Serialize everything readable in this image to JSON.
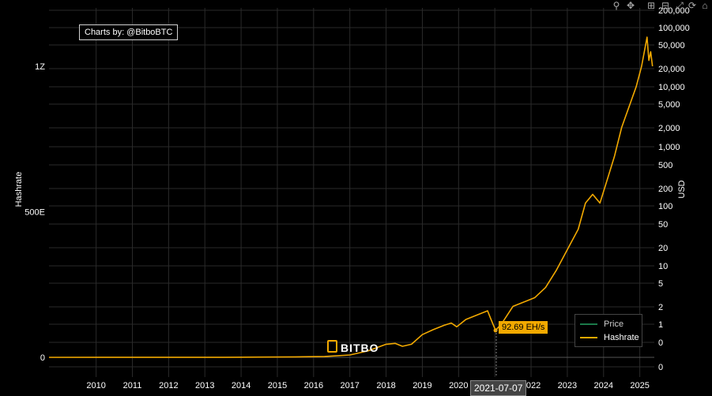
{
  "credit": "Charts by: @BitboBTC",
  "watermark": "BITBO",
  "hover": {
    "value_label": "92.69 EH/s",
    "date_label": "2021-07-07"
  },
  "toolbar": {
    "icons": [
      "zoom-icon",
      "pan-icon",
      "zoom-in-icon",
      "zoom-out-icon",
      "autoscale-icon",
      "reset-icon",
      "home-icon"
    ]
  },
  "chart_data": {
    "type": "line",
    "xlabel": "",
    "ylabel": "Hashrate",
    "y2label": "USD",
    "x_ticks": [
      "2010",
      "2011",
      "2012",
      "2013",
      "2014",
      "2015",
      "2016",
      "2017",
      "2018",
      "2019",
      "2020",
      "2021",
      "2022",
      "2023",
      "2024",
      "2025"
    ],
    "y_ticks": [
      {
        "label": "1Z",
        "value": 1000
      },
      {
        "label": "500E",
        "value": 500
      },
      {
        "label": "0",
        "value": 0
      }
    ],
    "y2_ticks": [
      "200,000",
      "100,000",
      "50,000",
      "20,000",
      "10,000",
      "5,000",
      "2,000",
      "1,000",
      "500",
      "200",
      "100",
      "50",
      "20",
      "10",
      "5",
      "2",
      "1",
      "0",
      "0"
    ],
    "ylim": [
      0,
      1150
    ],
    "xlim": [
      2009.2,
      2025.9
    ],
    "grid": true,
    "legend_position": "bottom-right",
    "legend": [
      {
        "name": "Price",
        "color": "#1b7a4a"
      },
      {
        "name": "Hashrate",
        "color": "#f2a900"
      }
    ],
    "series": [
      {
        "name": "Hashrate",
        "unit": "EH/s",
        "color": "#f2a900",
        "points": [
          [
            2009.2,
            0
          ],
          [
            2014.0,
            0.3
          ],
          [
            2016.0,
            1.5
          ],
          [
            2016.8,
            3
          ],
          [
            2017.5,
            8
          ],
          [
            2018.0,
            22
          ],
          [
            2018.5,
            45
          ],
          [
            2018.75,
            48
          ],
          [
            2018.95,
            38
          ],
          [
            2019.2,
            45
          ],
          [
            2019.5,
            78
          ],
          [
            2019.8,
            95
          ],
          [
            2020.1,
            110
          ],
          [
            2020.3,
            118
          ],
          [
            2020.45,
            105
          ],
          [
            2020.7,
            130
          ],
          [
            2021.0,
            145
          ],
          [
            2021.3,
            160
          ],
          [
            2021.37,
            138
          ],
          [
            2021.52,
            92.69
          ],
          [
            2021.7,
            118
          ],
          [
            2022.0,
            175
          ],
          [
            2022.3,
            190
          ],
          [
            2022.6,
            205
          ],
          [
            2022.9,
            240
          ],
          [
            2023.2,
            300
          ],
          [
            2023.5,
            370
          ],
          [
            2023.8,
            440
          ],
          [
            2024.0,
            530
          ],
          [
            2024.2,
            560
          ],
          [
            2024.4,
            530
          ],
          [
            2024.6,
            610
          ],
          [
            2024.8,
            690
          ],
          [
            2025.0,
            790
          ],
          [
            2025.2,
            860
          ],
          [
            2025.4,
            930
          ],
          [
            2025.55,
            1000
          ],
          [
            2025.7,
            1100
          ],
          [
            2025.75,
            1020
          ],
          [
            2025.8,
            1050
          ],
          [
            2025.85,
            1000
          ]
        ]
      }
    ]
  }
}
